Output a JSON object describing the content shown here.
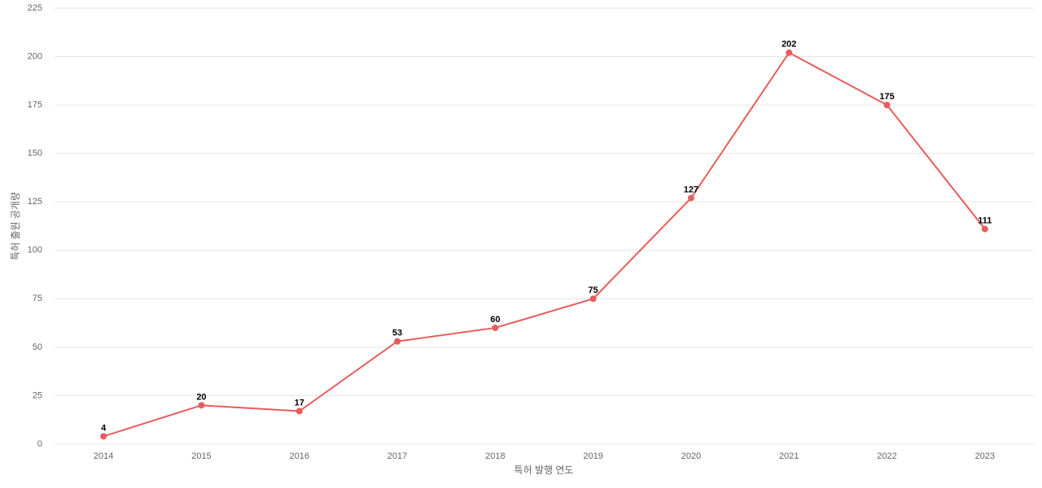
{
  "chart_data": {
    "type": "line",
    "x_label": "특허 발행 연도",
    "y_label": "특허 출원 공개량",
    "categories": [
      "2014",
      "2015",
      "2016",
      "2017",
      "2018",
      "2019",
      "2020",
      "2021",
      "2022",
      "2023"
    ],
    "series": [
      {
        "color": "#e85c5c",
        "values": [
          4,
          20,
          17,
          53,
          60,
          75,
          127,
          202,
          175,
          111
        ]
      }
    ],
    "ylim": [
      0,
      225
    ],
    "yticks": [
      0,
      25,
      50,
      75,
      100,
      125,
      150,
      175,
      200,
      225
    ],
    "grid": true
  }
}
